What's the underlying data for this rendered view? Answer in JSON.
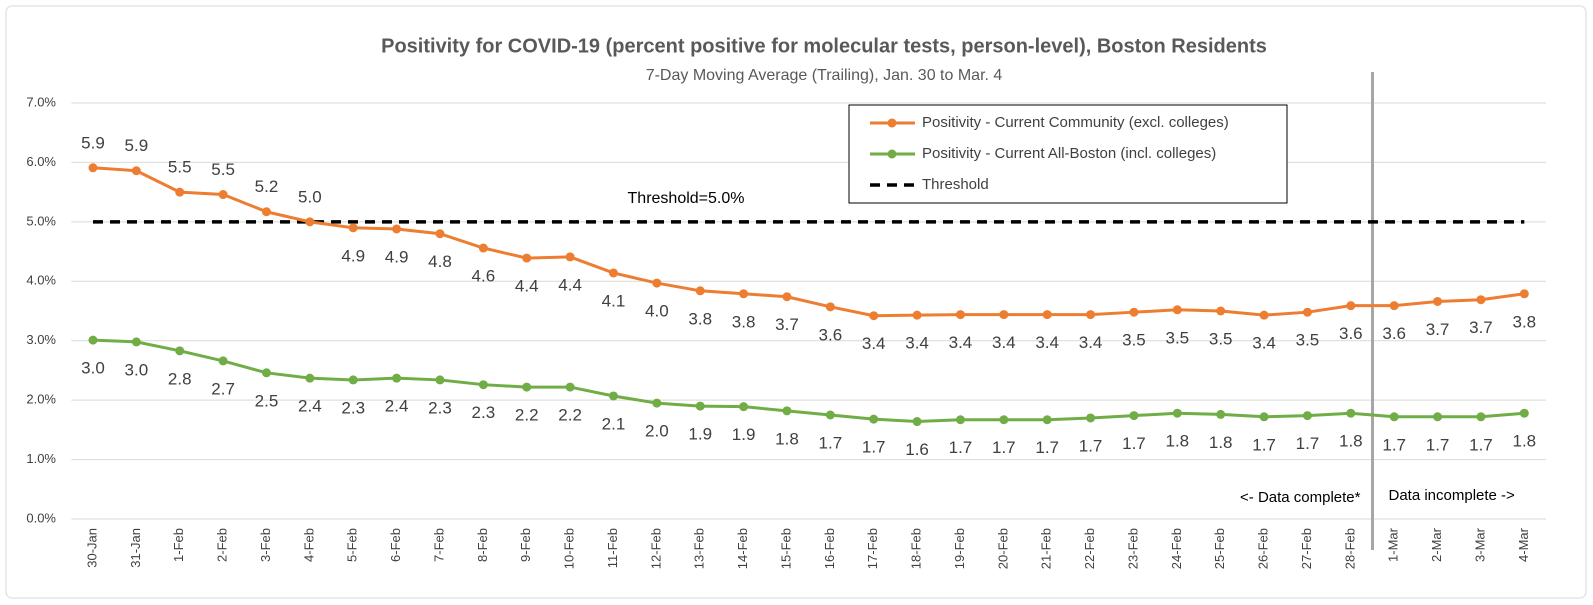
{
  "chart_data": {
    "type": "line",
    "title": "Positivity for COVID-19 (percent positive for molecular tests, person-level), Boston Residents",
    "subtitle": "7-Day Moving Average (Trailing), Jan. 30 to Mar. 4",
    "categories": [
      "30-Jan",
      "31-Jan",
      "1-Feb",
      "2-Feb",
      "3-Feb",
      "4-Feb",
      "5-Feb",
      "6-Feb",
      "7-Feb",
      "8-Feb",
      "9-Feb",
      "10-Feb",
      "11-Feb",
      "12-Feb",
      "13-Feb",
      "14-Feb",
      "15-Feb",
      "16-Feb",
      "17-Feb",
      "18-Feb",
      "19-Feb",
      "20-Feb",
      "21-Feb",
      "22-Feb",
      "23-Feb",
      "24-Feb",
      "25-Feb",
      "26-Feb",
      "27-Feb",
      "28-Feb",
      "1-Mar",
      "2-Mar",
      "3-Mar",
      "4-Mar"
    ],
    "series": [
      {
        "name": "Positivity - Current Community (excl. colleges)",
        "color": "#ed7d31",
        "values": [
          5.91,
          5.86,
          5.5,
          5.46,
          5.17,
          5.0,
          4.9,
          4.88,
          4.8,
          4.56,
          4.39,
          4.41,
          4.14,
          3.97,
          3.84,
          3.79,
          3.74,
          3.57,
          3.42,
          3.43,
          3.44,
          3.44,
          3.44,
          3.44,
          3.48,
          3.52,
          3.5,
          3.43,
          3.48,
          3.59,
          3.59,
          3.66,
          3.69,
          3.79
        ],
        "value_labels": [
          "5.9",
          "5.9",
          "5.5",
          "5.5",
          "5.2",
          "5.0",
          "4.9",
          "4.9",
          "4.8",
          "4.6",
          "4.4",
          "4.4",
          "4.1",
          "4.0",
          "3.8",
          "3.8",
          "3.7",
          "3.6",
          "3.4",
          "3.4",
          "3.4",
          "3.4",
          "3.4",
          "3.4",
          "3.5",
          "3.5",
          "3.5",
          "3.4",
          "3.5",
          "3.6",
          "3.6",
          "3.7",
          "3.7",
          "3.8"
        ]
      },
      {
        "name": "Positivity - Current All-Boston (incl. colleges)",
        "color": "#70ad47",
        "values": [
          3.01,
          2.98,
          2.83,
          2.66,
          2.46,
          2.37,
          2.34,
          2.37,
          2.34,
          2.26,
          2.22,
          2.22,
          2.07,
          1.95,
          1.9,
          1.89,
          1.82,
          1.75,
          1.68,
          1.64,
          1.67,
          1.67,
          1.67,
          1.7,
          1.74,
          1.78,
          1.76,
          1.72,
          1.74,
          1.78,
          1.72,
          1.72,
          1.72,
          1.78
        ],
        "value_labels": [
          "3.0",
          "3.0",
          "2.8",
          "2.7",
          "2.5",
          "2.4",
          "2.3",
          "2.4",
          "2.3",
          "2.3",
          "2.2",
          "2.2",
          "2.1",
          "2.0",
          "1.9",
          "1.9",
          "1.8",
          "1.7",
          "1.7",
          "1.6",
          "1.7",
          "1.7",
          "1.7",
          "1.7",
          "1.7",
          "1.8",
          "1.8",
          "1.7",
          "1.7",
          "1.8",
          "1.7",
          "1.7",
          "1.7",
          "1.8"
        ]
      }
    ],
    "threshold": {
      "name": "Threshold",
      "value": 5,
      "label": "Threshold=5.0%",
      "color": "#000000"
    },
    "annotations": [
      "<- Data complete*",
      "Data incomplete ->"
    ],
    "ylim": [
      0,
      7
    ],
    "yticks": [
      {
        "value": 0,
        "label": "0.0%"
      },
      {
        "value": 1,
        "label": "1.0%"
      },
      {
        "value": 2,
        "label": "2.0%"
      },
      {
        "value": 3,
        "label": "3.0%"
      },
      {
        "value": 4,
        "label": "4.0%"
      },
      {
        "value": 5,
        "label": "5.0%"
      },
      {
        "value": 6,
        "label": "6.0%"
      },
      {
        "value": 7,
        "label": "7.0%"
      }
    ],
    "grid": true
  }
}
